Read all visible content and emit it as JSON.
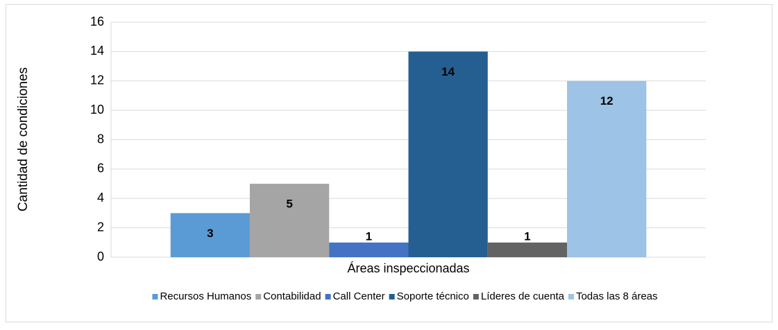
{
  "chart_data": {
    "type": "bar",
    "y_label": "Cantidad de condiciones",
    "categories": [
      "Áreas inspeccionadas"
    ],
    "series": [
      {
        "name": "Recursos Humanos",
        "color": "#5b9bd5",
        "values": [
          3
        ]
      },
      {
        "name": "Contabilidad",
        "color": "#a5a5a5",
        "values": [
          5
        ]
      },
      {
        "name": "Call Center",
        "color": "#4472c4",
        "values": [
          1
        ]
      },
      {
        "name": "Soporte técnico",
        "color": "#255e91",
        "values": [
          14
        ]
      },
      {
        "name": "Líderes de cuenta",
        "color": "#636363",
        "values": [
          1
        ]
      },
      {
        "name": "Todas las 8 áreas",
        "color": "#9dc3e6",
        "values": [
          12
        ]
      }
    ],
    "ylim": [
      0,
      16
    ],
    "yticks": [
      0,
      2,
      4,
      6,
      8,
      10,
      12,
      14,
      16
    ],
    "grid": true,
    "legend": "bottom"
  }
}
